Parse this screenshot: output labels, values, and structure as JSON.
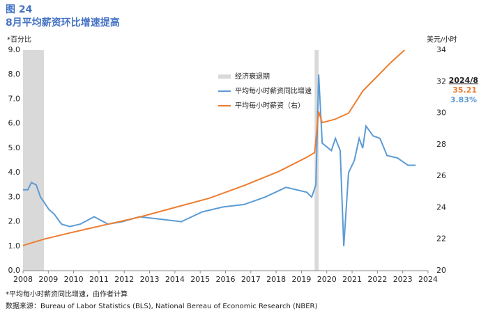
{
  "chart_data": {
    "type": "line",
    "figure_label": "图 24",
    "title": "8月平均薪资环比增速提高",
    "y_axis_label": "*百分比",
    "y2_axis_label": "美元/小时",
    "recession_label": "经济衰退期",
    "recession_color": "#d9d9d9",
    "recessions": [
      [
        2008.0,
        2008.83
      ],
      [
        2019.52,
        2019.68
      ]
    ],
    "xlim": [
      2008,
      2024
    ],
    "xticks": [
      2008,
      2009,
      2010,
      2011,
      2012,
      2013,
      2014,
      2015,
      2016,
      2017,
      2018,
      2019,
      2020,
      2021,
      2022,
      2023,
      2024
    ],
    "ylim": [
      0,
      9
    ],
    "yticks": [
      {
        "value": 0,
        "label": "0.0"
      },
      {
        "value": 1,
        "label": "1.0"
      },
      {
        "value": 2,
        "label": "2.0"
      },
      {
        "value": 3,
        "label": "3.0"
      },
      {
        "value": 4,
        "label": "4.0"
      },
      {
        "value": 5,
        "label": "5.0"
      },
      {
        "value": 6,
        "label": "6.0"
      },
      {
        "value": 7,
        "label": "7.0"
      },
      {
        "value": 8,
        "label": "8.0"
      },
      {
        "value": 9,
        "label": "9.0"
      }
    ],
    "y2lim": [
      20,
      34
    ],
    "y2ticks": [
      20,
      22,
      24,
      26,
      28,
      30,
      32,
      34
    ],
    "series": [
      {
        "name": "平均每小时薪资同比增速",
        "color": "#5b9bd5",
        "x": [
          2008.0,
          2008.19,
          2008.33,
          2008.52,
          2008.69,
          2008.83,
          2009.02,
          2009.24,
          2009.52,
          2009.85,
          2010.26,
          2010.81,
          2011.36,
          2011.91,
          2012.6,
          2013.43,
          2014.25,
          2015.08,
          2015.91,
          2016.73,
          2017.56,
          2018.39,
          2019.21,
          2019.4,
          2019.57,
          2019.68,
          2019.82,
          2020.18,
          2020.34,
          2020.53,
          2020.67,
          2020.86,
          2021.09,
          2021.28,
          2021.42,
          2021.55,
          2021.83,
          2022.1,
          2022.38,
          2022.79,
          2023.21,
          2023.51
        ],
        "values": [
          3.3,
          3.3,
          3.6,
          3.5,
          3.0,
          2.8,
          2.5,
          2.3,
          1.9,
          1.8,
          1.9,
          2.2,
          1.9,
          2.0,
          2.2,
          2.1,
          2.0,
          2.4,
          2.6,
          2.7,
          3.0,
          3.4,
          3.2,
          3.0,
          3.5,
          8.0,
          5.2,
          4.9,
          5.4,
          4.9,
          1.0,
          4.0,
          4.5,
          5.4,
          5.0,
          5.9,
          5.5,
          5.4,
          4.7,
          4.6,
          4.3,
          4.3
        ]
      },
      {
        "name": "平均每小时薪资（右）",
        "color": "#ed7d31",
        "axis": "y2",
        "x": [
          2008.0,
          2008.83,
          2009.85,
          2011.22,
          2012.6,
          2013.98,
          2015.36,
          2016.73,
          2018.11,
          2019.21,
          2019.52,
          2019.68,
          2019.82,
          2020.31,
          2020.86,
          2021.42,
          2021.97,
          2022.52,
          2023.07
        ],
        "values": [
          21.6,
          22.0,
          22.4,
          22.9,
          23.4,
          24.0,
          24.6,
          25.4,
          26.3,
          27.2,
          27.5,
          30.1,
          29.4,
          29.6,
          30.0,
          31.4,
          32.3,
          33.2,
          34.0
        ]
      }
    ],
    "latest": {
      "date": "2024/8",
      "wage": 35.21,
      "growth": {
        "value": 3.83,
        "label": "3.83%"
      }
    },
    "footnote": "*平均每小时薪资同比增速，由作者计算",
    "source": "数据来源：Bureau of Labor Statistics (BLS), National Bereau of Economic Research (NBER)"
  }
}
